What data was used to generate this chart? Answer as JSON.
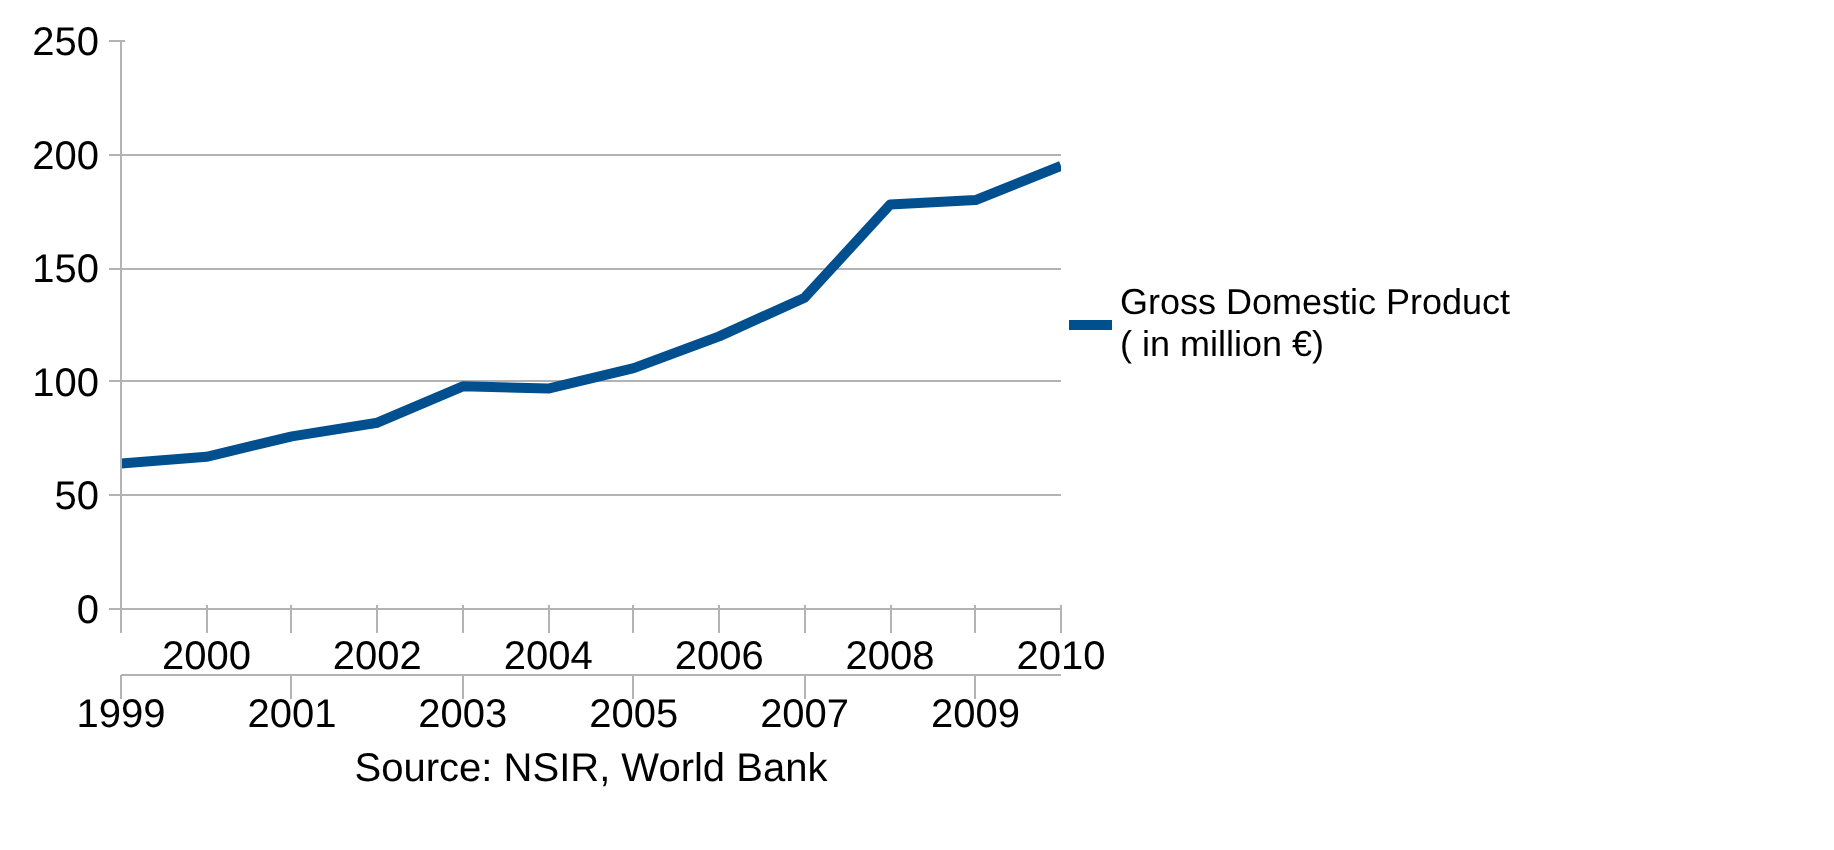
{
  "chart_data": {
    "type": "line",
    "categories": [
      "1999",
      "2000",
      "2001",
      "2002",
      "2003",
      "2004",
      "2005",
      "2006",
      "2007",
      "2008",
      "2009",
      "2010"
    ],
    "series": [
      {
        "name": "Gross Domestic Product ( in million €)",
        "color": "#004f8f",
        "values": [
          64,
          67,
          76,
          82,
          98,
          97,
          106,
          120,
          137,
          178,
          180,
          195
        ]
      }
    ],
    "ylim": [
      0,
      250
    ],
    "yticks": [
      0,
      50,
      100,
      150,
      200,
      250
    ],
    "grid": "y",
    "legend": "right",
    "marker": "none",
    "line_style": "solid",
    "annotations": [
      "Source: NSIR, World Bank"
    ]
  }
}
